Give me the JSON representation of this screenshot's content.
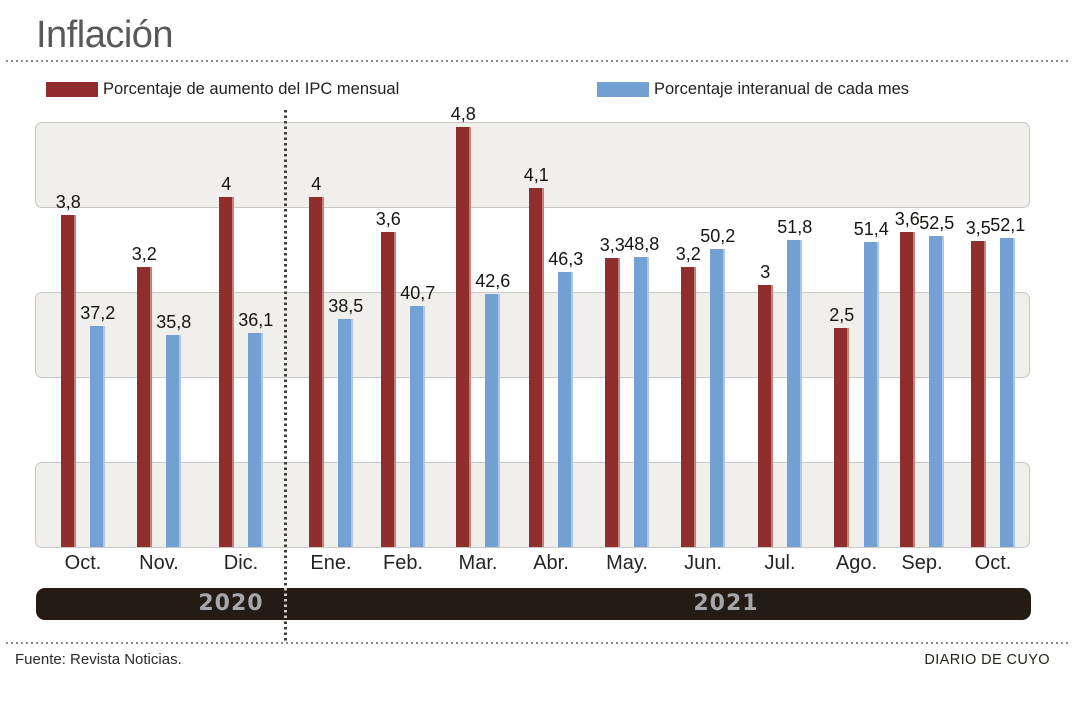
{
  "header": {
    "title": "Inflación"
  },
  "legend": [
    {
      "label": "Porcentaje de aumento del IPC mensual",
      "color": "#8f2e2d"
    },
    {
      "label": "Porcentaje interanual de cada mes",
      "color": "#74a1d4"
    }
  ],
  "chart_data": {
    "type": "bar",
    "title": "Inflación",
    "categories": [
      "Oct.",
      "Nov.",
      "Dic.",
      "Ene.",
      "Feb.",
      "Mar.",
      "Abr.",
      "May.",
      "Jun.",
      "Jul.",
      "Ago.",
      "Sep.",
      "Oct."
    ],
    "year_groups": [
      {
        "label": "2020",
        "months": [
          "Oct.",
          "Nov.",
          "Dic."
        ]
      },
      {
        "label": "2021",
        "months": [
          "Ene.",
          "Feb.",
          "Mar.",
          "Abr.",
          "May.",
          "Jun.",
          "Jul.",
          "Ago.",
          "Sep.",
          "Oct."
        ]
      }
    ],
    "series": [
      {
        "name": "Porcentaje de aumento del IPC mensual",
        "color": "#8f2e2d",
        "values": [
          3.8,
          3.2,
          4,
          4,
          3.6,
          4.8,
          4.1,
          3.3,
          3.2,
          3,
          2.5,
          3.6,
          3.5
        ],
        "labels": [
          "3,8",
          "3,2",
          "4",
          "4",
          "3,6",
          "4,8",
          "4,1",
          "3,3",
          "3,2",
          "3",
          "2,5",
          "3,6",
          "3,5"
        ],
        "axis_range": [
          0,
          4.87
        ]
      },
      {
        "name": "Porcentaje interanual de cada mes",
        "color": "#74a1d4",
        "values": [
          37.2,
          35.8,
          36.1,
          38.5,
          40.7,
          42.6,
          46.3,
          48.8,
          50.2,
          51.8,
          51.4,
          52.5,
          52.1
        ],
        "labels": [
          "37,2",
          "35,8",
          "36,1",
          "38,5",
          "40,7",
          "42,6",
          "46,3",
          "48,8",
          "50,2",
          "51,8",
          "51,4",
          "52,5",
          "52,1"
        ],
        "axis_range": [
          0,
          71.8
        ]
      }
    ],
    "grid": "horizontal-bands",
    "legend_position": "top"
  },
  "footer": {
    "source": "Fuente: Revista Noticias.",
    "credit": "DIARIO DE CUYO"
  }
}
